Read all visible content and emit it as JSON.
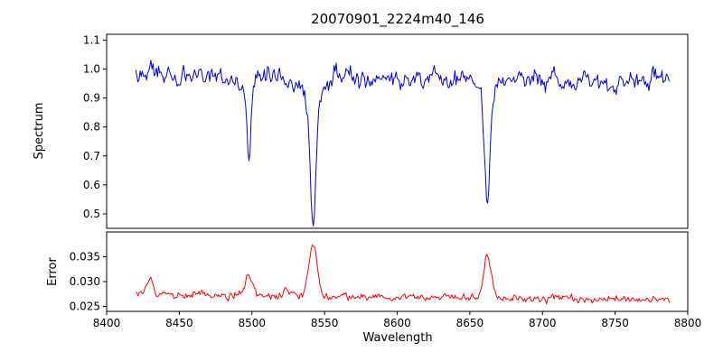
{
  "chart_data": {
    "type": "line",
    "title": "20070901_2224m40_146",
    "xlabel": "Wavelength",
    "background_color": "#ffffff",
    "axis_color": "#000000",
    "grid": false,
    "legend": null,
    "x_range": [
      8400,
      8800
    ],
    "data_x_range": [
      8420,
      8788
    ],
    "x_ticks": [
      8400,
      8450,
      8500,
      8550,
      8600,
      8650,
      8700,
      8750,
      8800
    ],
    "sample_step": 0.75,
    "random_seed": 20070901,
    "panels": [
      {
        "name": "spectrum",
        "ylabel": "Spectrum",
        "line_color": "#0000e6",
        "ylim": [
          0.45,
          1.12
        ],
        "yticks": [
          {
            "value": 0.5,
            "label": "0.5"
          },
          {
            "value": 0.6,
            "label": "0.6"
          },
          {
            "value": 0.7,
            "label": "0.7"
          },
          {
            "value": 0.8,
            "label": "0.8"
          },
          {
            "value": 0.9,
            "label": "0.9"
          },
          {
            "value": 1.0,
            "label": "1.0"
          },
          {
            "value": 1.1,
            "label": "1.1"
          }
        ],
        "series": {
          "continuum_level": 0.968,
          "noise_sigma": 0.016,
          "noise_rho": 0.45,
          "absorption_lines": [
            {
              "center": 8498.0,
              "min_value": 0.67,
              "core_depth": 0.26,
              "core_width": 1.2,
              "wing_depth": 0.04,
              "wing_width": 4.0
            },
            {
              "center": 8542.1,
              "min_value": 0.46,
              "core_depth": 0.42,
              "core_width": 1.8,
              "wing_depth": 0.09,
              "wing_width": 6.0
            },
            {
              "center": 8662.1,
              "min_value": 0.53,
              "core_depth": 0.36,
              "core_width": 1.6,
              "wing_depth": 0.08,
              "wing_width": 5.0
            }
          ]
        }
      },
      {
        "name": "error",
        "ylabel": "Error",
        "line_color": "#ff0000",
        "ylim": [
          0.024,
          0.04
        ],
        "yticks": [
          {
            "value": 0.025,
            "label": "0.025"
          },
          {
            "value": 0.03,
            "label": "0.030"
          },
          {
            "value": 0.035,
            "label": "0.035"
          }
        ],
        "series": {
          "baseline_start": 0.0275,
          "baseline_end": 0.0263,
          "noise_sigma": 0.00035,
          "noise_rho": 0.4,
          "peaks": [
            {
              "center": 8430.0,
              "height": 0.003,
              "width": 2.5,
              "approx_peak_value": 0.0305
            },
            {
              "center": 8498.0,
              "height": 0.0038,
              "width": 2.5,
              "approx_peak_value": 0.0313
            },
            {
              "center": 8524.0,
              "height": 0.0012,
              "width": 2.0,
              "approx_peak_value": 0.0288
            },
            {
              "center": 8542.1,
              "height": 0.0102,
              "width": 2.8,
              "approx_peak_value": 0.0375
            },
            {
              "center": 8662.1,
              "height": 0.0088,
              "width": 2.5,
              "approx_peak_value": 0.036
            }
          ]
        }
      }
    ]
  }
}
